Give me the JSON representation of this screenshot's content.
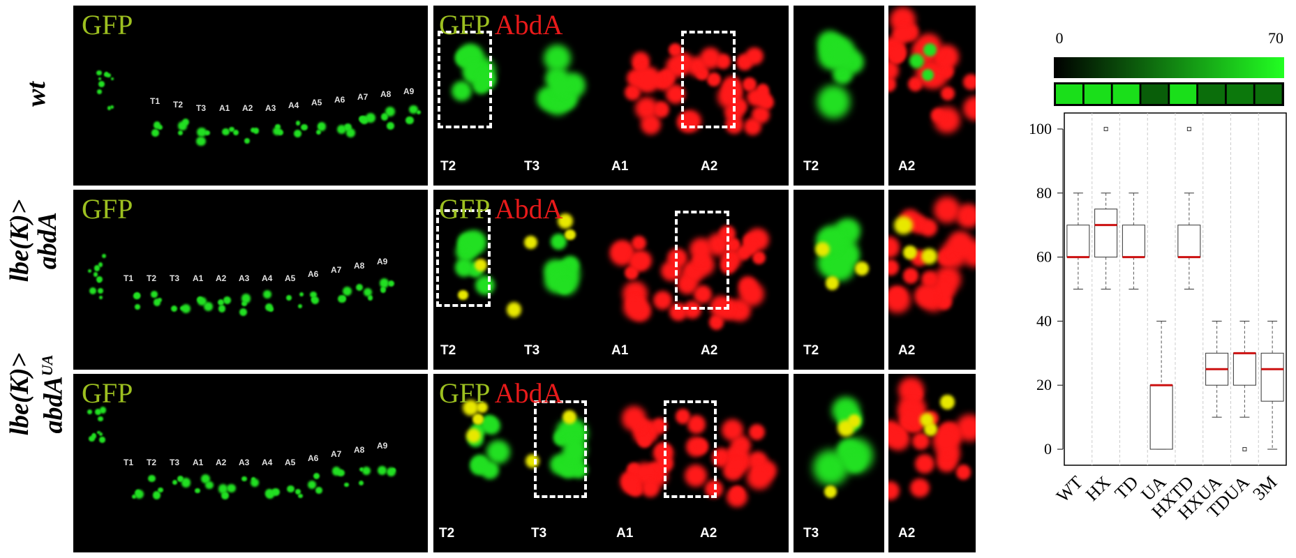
{
  "row_labels": [
    {
      "line1": "wt",
      "line2": ""
    },
    {
      "line1": "lbe(K)>",
      "line2": "abdA"
    },
    {
      "line1": "lbe(K)>",
      "line2": "abdA",
      "sup": "UA"
    }
  ],
  "panel_titles": {
    "gfp": "GFP",
    "abda": "AbdA"
  },
  "embryo_segments": [
    [
      "T1",
      "T2",
      "T3",
      "A1",
      "A2",
      "A3",
      "A4",
      "A5",
      "A6",
      "A7",
      "A8",
      "A9"
    ],
    [
      "T1",
      "T2",
      "T3",
      "A1",
      "A2",
      "A3",
      "A4",
      "A5",
      "A6",
      "A7",
      "A8",
      "A9"
    ],
    [
      "T1",
      "T2",
      "T3",
      "A1",
      "A2",
      "A3",
      "A4",
      "A5",
      "A6",
      "A7",
      "A8",
      "A9"
    ]
  ],
  "zoom_segments": [
    [
      "T2",
      "T3",
      "A1",
      "A2"
    ],
    [
      "T2",
      "T3",
      "A1",
      "A2"
    ],
    [
      "T2",
      "T3",
      "A1",
      "A2"
    ]
  ],
  "closeup_segments": [
    [
      "T2",
      "A2"
    ],
    [
      "T2",
      "A2"
    ],
    [
      "T3",
      "A2"
    ]
  ],
  "colors": {
    "gfp_green": "#22e022",
    "abda_red": "#ff1a1a",
    "overlap_yellow": "#e8e800",
    "median_red": "#cc1111"
  },
  "colorbar": {
    "min_label": "0",
    "max_label": "70"
  },
  "chart_data": {
    "type": "box",
    "categories": [
      "WT",
      "HX",
      "TD",
      "UA",
      "HXTD",
      "HXUA",
      "TDUA",
      "3M"
    ],
    "ylim": [
      -5,
      105
    ],
    "yticks": [
      0,
      20,
      40,
      60,
      80,
      100
    ],
    "boxes": [
      {
        "name": "WT",
        "min": 50,
        "q1": 60,
        "median": 60,
        "q3": 70,
        "max": 80,
        "outliers": []
      },
      {
        "name": "HX",
        "min": 50,
        "q1": 60,
        "median": 70,
        "q3": 75,
        "max": 80,
        "outliers": [
          100
        ]
      },
      {
        "name": "TD",
        "min": 50,
        "q1": 60,
        "median": 60,
        "q3": 70,
        "max": 80,
        "outliers": []
      },
      {
        "name": "UA",
        "min": 0,
        "q1": 0,
        "median": 20,
        "q3": 20,
        "max": 40,
        "outliers": []
      },
      {
        "name": "HXTD",
        "min": 50,
        "q1": 60,
        "median": 60,
        "q3": 70,
        "max": 80,
        "outliers": [
          100
        ]
      },
      {
        "name": "HXUA",
        "min": 10,
        "q1": 20,
        "median": 25,
        "q3": 30,
        "max": 40,
        "outliers": []
      },
      {
        "name": "TDUA",
        "min": 10,
        "q1": 20,
        "median": 30,
        "q3": 30,
        "max": 40,
        "outliers": [
          0
        ]
      },
      {
        "name": "3M",
        "min": 0,
        "q1": 15,
        "median": 25,
        "q3": 30,
        "max": 40,
        "outliers": []
      }
    ],
    "heat_cells": [
      60,
      60,
      60,
      20,
      60,
      25,
      28,
      25
    ],
    "heat_range": [
      0,
      70
    ]
  }
}
